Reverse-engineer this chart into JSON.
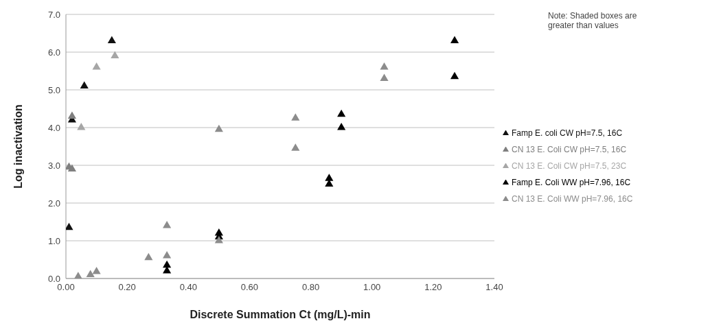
{
  "chart_data": {
    "type": "scatter",
    "xlabel": "Discrete Summation Ct (mg/L)-min",
    "ylabel": "Log inactivation",
    "annotations": [
      "Note: Shaded boxes are greater than values"
    ],
    "series": [
      {
        "name": "Famp E. coli CW pH=7.5, 16C",
        "color": "#111111",
        "x": [
          0.15,
          0.06,
          0.02,
          0.01
        ],
        "values": [
          6.3,
          5.1,
          4.2,
          1.35
        ]
      },
      {
        "name": "CN 13 E. Coli CW pH=7.5, 16C",
        "color": "#7f7f7f",
        "x": [
          0.02,
          0.01,
          0.02
        ],
        "values": [
          4.3,
          2.95,
          2.9
        ]
      },
      {
        "name": "CN 13 E. Coli CW pH=7.5, 23C",
        "color": "#a6a6a6",
        "x": [
          0.1,
          0.16,
          0.05
        ],
        "values": [
          5.6,
          5.9,
          4.0
        ]
      },
      {
        "name": "Famp E. Coli WW pH=7.96, 16C",
        "color": "#000000",
        "x": [
          0.33,
          0.33,
          0.5,
          0.5,
          0.86,
          0.86,
          0.9,
          0.9,
          1.27,
          1.27
        ],
        "values": [
          0.2,
          0.35,
          1.2,
          1.1,
          2.65,
          2.5,
          4.35,
          4.0,
          6.3,
          5.35
        ]
      },
      {
        "name": "CN 13 E. Coli WW pH=7.96, 16C",
        "color": "#8c8c8c",
        "x": [
          0.04,
          0.08,
          0.1,
          0.27,
          0.33,
          0.33,
          0.5,
          0.5,
          0.75,
          0.75,
          1.04,
          1.04
        ],
        "values": [
          0.05,
          0.1,
          0.18,
          0.55,
          0.6,
          1.4,
          1.0,
          3.95,
          4.25,
          3.45,
          5.6,
          5.3
        ]
      }
    ],
    "xlim": [
      0,
      1.4
    ],
    "xticks": [
      {
        "value": 0,
        "label": "0.00"
      },
      {
        "value": 0.2,
        "label": "0.20"
      },
      {
        "value": 0.4,
        "label": "0.40"
      },
      {
        "value": 0.6,
        "label": "0.60"
      },
      {
        "value": 0.8,
        "label": "0.80"
      },
      {
        "value": 1.0,
        "label": "1.00"
      },
      {
        "value": 1.2,
        "label": "1.20"
      },
      {
        "value": 1.4,
        "label": "1.40"
      }
    ],
    "ylim": [
      0,
      7
    ],
    "yticks": [
      {
        "value": 0,
        "label": "0.0"
      },
      {
        "value": 1,
        "label": "1.0"
      },
      {
        "value": 2,
        "label": "2.0"
      },
      {
        "value": 3,
        "label": "3.0"
      },
      {
        "value": 4,
        "label": "4.0"
      },
      {
        "value": 5,
        "label": "5.0"
      },
      {
        "value": 6,
        "label": "6.0"
      },
      {
        "value": 7,
        "label": "7.0"
      }
    ],
    "grid": "y",
    "legend": "right",
    "marker": "triangle"
  }
}
